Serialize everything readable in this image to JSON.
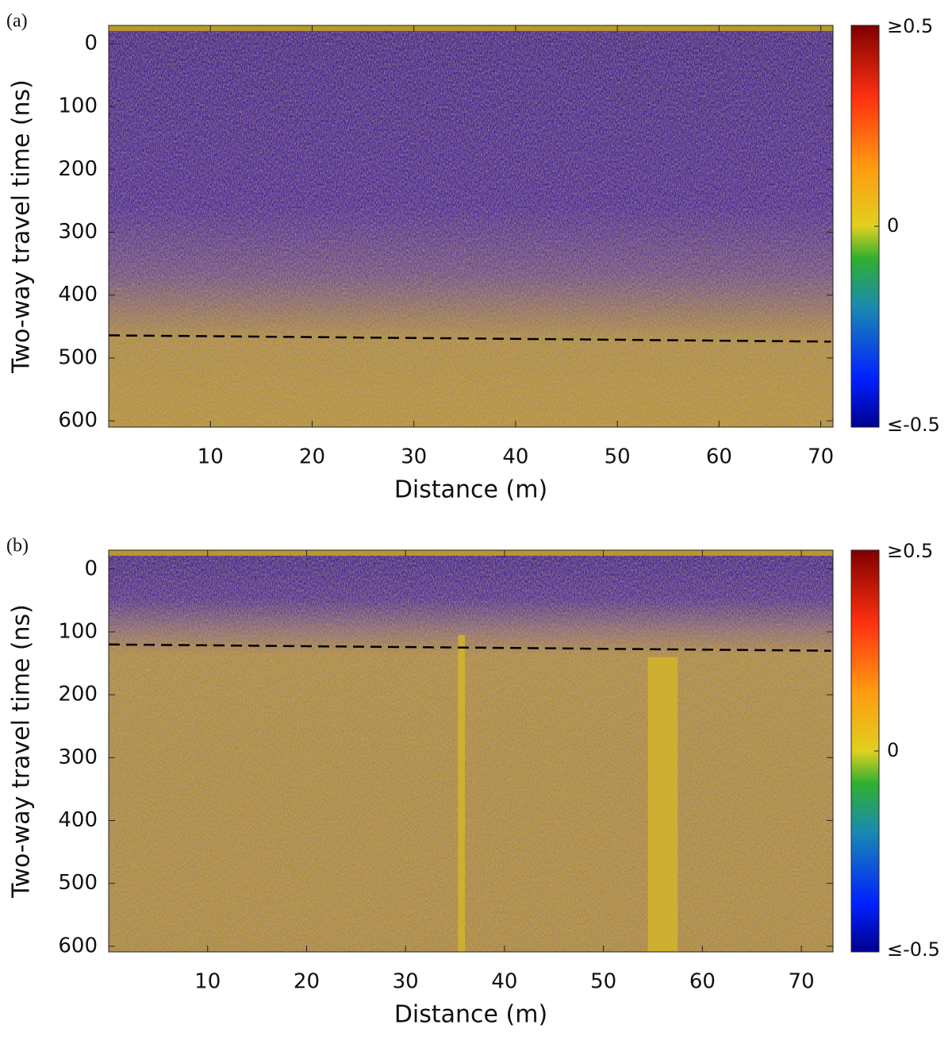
{
  "chart_data": [
    {
      "type": "radargram",
      "panel_label": "(a)",
      "xlabel": "Distance (m)",
      "ylabel": "Two-way travel time (ns)",
      "xlim": [
        0,
        71.2
      ],
      "ylim": [
        -29,
        610
      ],
      "y_reversed": true,
      "xticks": [
        10,
        20,
        30,
        40,
        50,
        60,
        70
      ],
      "yticks": [
        0,
        100,
        200,
        300,
        400,
        500,
        600
      ],
      "dashed_line": {
        "x": [
          0,
          71
        ],
        "y": [
          464,
          474
        ]
      },
      "bright_columns": [],
      "colorbar": {
        "lim": [
          -0.5,
          0.5
        ],
        "ticks": [
          {
            "value": 0.5,
            "label": "≥0.5"
          },
          0,
          {
            "value": -0.5,
            "label": "≤-0.5"
          }
        ]
      }
    },
    {
      "type": "radargram",
      "panel_label": "(b)",
      "xlabel": "Distance (m)",
      "ylabel": "Two-way travel time (ns)",
      "xlim": [
        0,
        73.2
      ],
      "ylim": [
        -30,
        609
      ],
      "y_reversed": true,
      "xticks": [
        10,
        20,
        30,
        40,
        50,
        60,
        70
      ],
      "yticks": [
        0,
        100,
        200,
        300,
        400,
        500,
        600
      ],
      "dashed_line": {
        "x": [
          0,
          73
        ],
        "y": [
          120,
          130
        ]
      },
      "bright_columns": [
        {
          "x": [
            35.3,
            36.0
          ],
          "y": [
            105,
            609
          ]
        },
        {
          "x": [
            54.5,
            57.5
          ],
          "y": [
            140,
            609
          ]
        }
      ],
      "colorbar": {
        "lim": [
          -0.5,
          0.5
        ],
        "ticks": [
          {
            "value": 0.5,
            "label": "≥0.5"
          },
          0,
          {
            "value": -0.5,
            "label": "≤-0.5"
          }
        ]
      }
    }
  ]
}
